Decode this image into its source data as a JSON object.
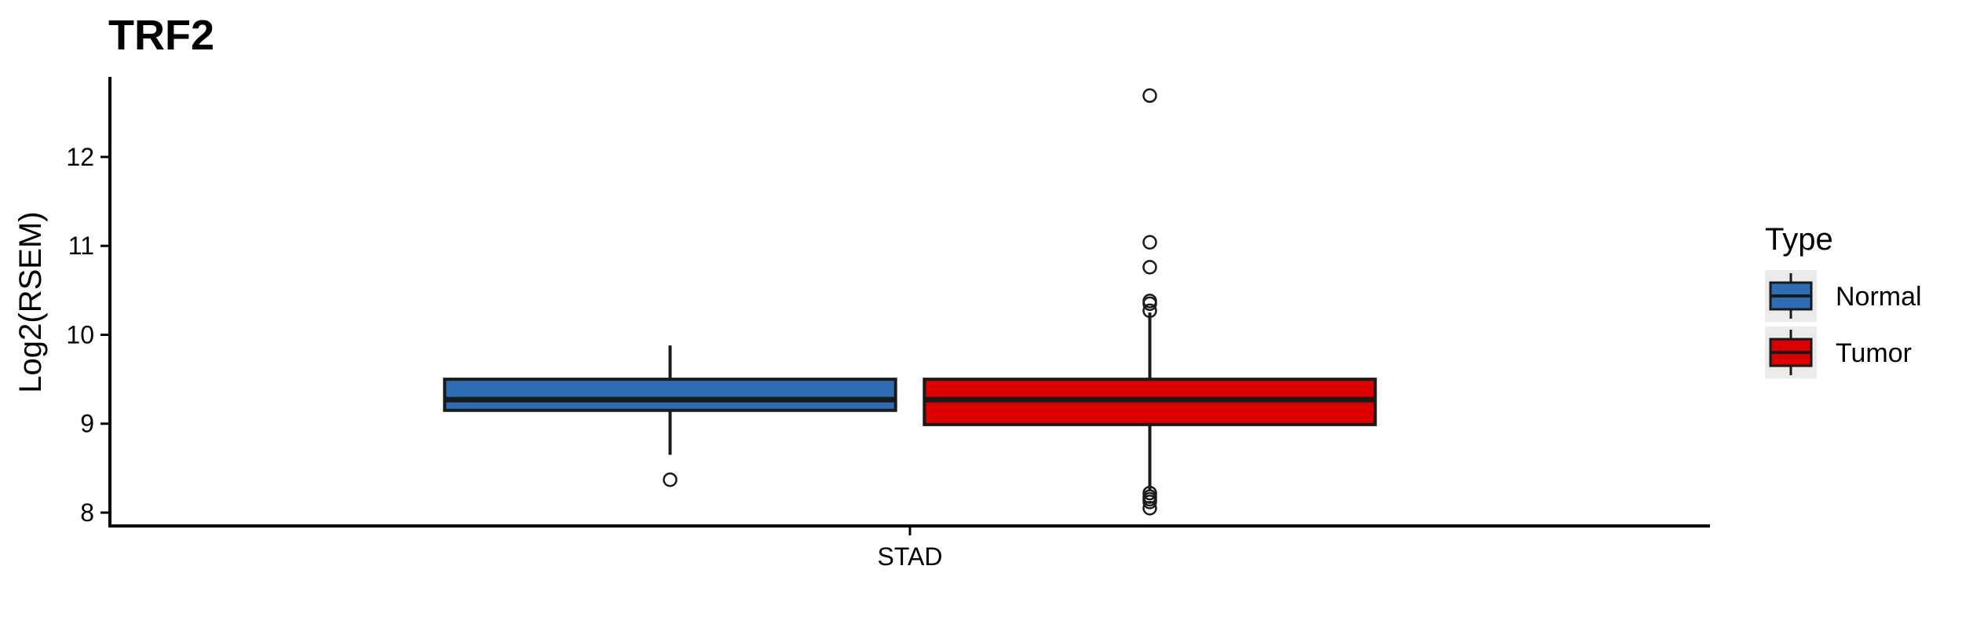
{
  "chart_data": {
    "type": "box",
    "title": "TRF2",
    "xlabel": "",
    "ylabel": "Log2(RSEM)",
    "categories": [
      "STAD"
    ],
    "ylim": [
      7.85,
      12.9
    ],
    "yticks": [
      8,
      9,
      10,
      11,
      12
    ],
    "grid": false,
    "legend": {
      "title": "Type",
      "position": "right"
    },
    "series": [
      {
        "name": "Normal",
        "color": "#2E6DB4",
        "category": "STAD",
        "whisker_low": 8.65,
        "q1": 9.15,
        "median": 9.27,
        "q3": 9.5,
        "whisker_high": 9.88,
        "outliers": [
          8.37
        ]
      },
      {
        "name": "Tumor",
        "color": "#DC0000",
        "category": "STAD",
        "whisker_low": 8.25,
        "q1": 8.99,
        "median": 9.27,
        "q3": 9.5,
        "whisker_high": 10.25,
        "outliers": [
          12.69,
          11.04,
          10.76,
          10.38,
          10.35,
          10.27,
          8.22,
          8.18,
          8.15,
          8.12,
          8.05
        ]
      }
    ]
  }
}
